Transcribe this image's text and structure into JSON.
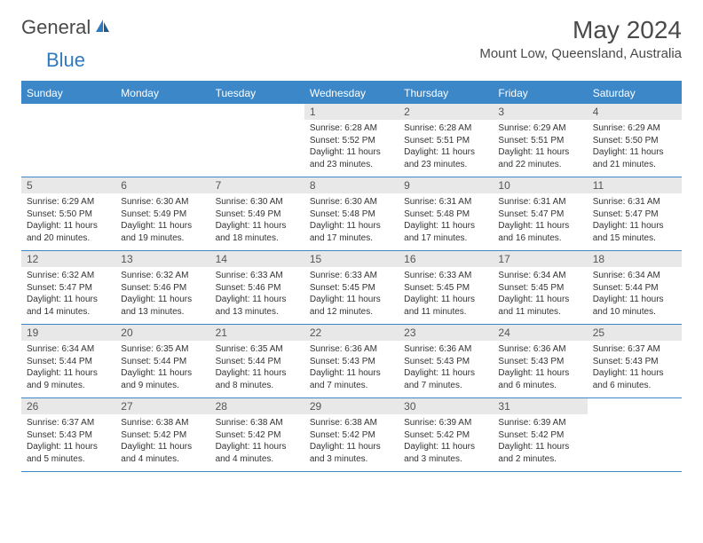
{
  "logo": {
    "text1": "General",
    "text2": "Blue",
    "icon_color": "#2f7ac0"
  },
  "title": "May 2024",
  "location": "Mount Low, Queensland, Australia",
  "days_of_week": [
    "Sunday",
    "Monday",
    "Tuesday",
    "Wednesday",
    "Thursday",
    "Friday",
    "Saturday"
  ],
  "colors": {
    "header_bar": "#3b87c8",
    "day_num_bg": "#e8e8e8",
    "row_border": "#3b87c8",
    "text": "#333333"
  },
  "weeks": [
    [
      {
        "day": "",
        "sunrise": "",
        "sunset": "",
        "daylight": ""
      },
      {
        "day": "",
        "sunrise": "",
        "sunset": "",
        "daylight": ""
      },
      {
        "day": "",
        "sunrise": "",
        "sunset": "",
        "daylight": ""
      },
      {
        "day": "1",
        "sunrise": "Sunrise: 6:28 AM",
        "sunset": "Sunset: 5:52 PM",
        "daylight": "Daylight: 11 hours and 23 minutes."
      },
      {
        "day": "2",
        "sunrise": "Sunrise: 6:28 AM",
        "sunset": "Sunset: 5:51 PM",
        "daylight": "Daylight: 11 hours and 23 minutes."
      },
      {
        "day": "3",
        "sunrise": "Sunrise: 6:29 AM",
        "sunset": "Sunset: 5:51 PM",
        "daylight": "Daylight: 11 hours and 22 minutes."
      },
      {
        "day": "4",
        "sunrise": "Sunrise: 6:29 AM",
        "sunset": "Sunset: 5:50 PM",
        "daylight": "Daylight: 11 hours and 21 minutes."
      }
    ],
    [
      {
        "day": "5",
        "sunrise": "Sunrise: 6:29 AM",
        "sunset": "Sunset: 5:50 PM",
        "daylight": "Daylight: 11 hours and 20 minutes."
      },
      {
        "day": "6",
        "sunrise": "Sunrise: 6:30 AM",
        "sunset": "Sunset: 5:49 PM",
        "daylight": "Daylight: 11 hours and 19 minutes."
      },
      {
        "day": "7",
        "sunrise": "Sunrise: 6:30 AM",
        "sunset": "Sunset: 5:49 PM",
        "daylight": "Daylight: 11 hours and 18 minutes."
      },
      {
        "day": "8",
        "sunrise": "Sunrise: 6:30 AM",
        "sunset": "Sunset: 5:48 PM",
        "daylight": "Daylight: 11 hours and 17 minutes."
      },
      {
        "day": "9",
        "sunrise": "Sunrise: 6:31 AM",
        "sunset": "Sunset: 5:48 PM",
        "daylight": "Daylight: 11 hours and 17 minutes."
      },
      {
        "day": "10",
        "sunrise": "Sunrise: 6:31 AM",
        "sunset": "Sunset: 5:47 PM",
        "daylight": "Daylight: 11 hours and 16 minutes."
      },
      {
        "day": "11",
        "sunrise": "Sunrise: 6:31 AM",
        "sunset": "Sunset: 5:47 PM",
        "daylight": "Daylight: 11 hours and 15 minutes."
      }
    ],
    [
      {
        "day": "12",
        "sunrise": "Sunrise: 6:32 AM",
        "sunset": "Sunset: 5:47 PM",
        "daylight": "Daylight: 11 hours and 14 minutes."
      },
      {
        "day": "13",
        "sunrise": "Sunrise: 6:32 AM",
        "sunset": "Sunset: 5:46 PM",
        "daylight": "Daylight: 11 hours and 13 minutes."
      },
      {
        "day": "14",
        "sunrise": "Sunrise: 6:33 AM",
        "sunset": "Sunset: 5:46 PM",
        "daylight": "Daylight: 11 hours and 13 minutes."
      },
      {
        "day": "15",
        "sunrise": "Sunrise: 6:33 AM",
        "sunset": "Sunset: 5:45 PM",
        "daylight": "Daylight: 11 hours and 12 minutes."
      },
      {
        "day": "16",
        "sunrise": "Sunrise: 6:33 AM",
        "sunset": "Sunset: 5:45 PM",
        "daylight": "Daylight: 11 hours and 11 minutes."
      },
      {
        "day": "17",
        "sunrise": "Sunrise: 6:34 AM",
        "sunset": "Sunset: 5:45 PM",
        "daylight": "Daylight: 11 hours and 11 minutes."
      },
      {
        "day": "18",
        "sunrise": "Sunrise: 6:34 AM",
        "sunset": "Sunset: 5:44 PM",
        "daylight": "Daylight: 11 hours and 10 minutes."
      }
    ],
    [
      {
        "day": "19",
        "sunrise": "Sunrise: 6:34 AM",
        "sunset": "Sunset: 5:44 PM",
        "daylight": "Daylight: 11 hours and 9 minutes."
      },
      {
        "day": "20",
        "sunrise": "Sunrise: 6:35 AM",
        "sunset": "Sunset: 5:44 PM",
        "daylight": "Daylight: 11 hours and 9 minutes."
      },
      {
        "day": "21",
        "sunrise": "Sunrise: 6:35 AM",
        "sunset": "Sunset: 5:44 PM",
        "daylight": "Daylight: 11 hours and 8 minutes."
      },
      {
        "day": "22",
        "sunrise": "Sunrise: 6:36 AM",
        "sunset": "Sunset: 5:43 PM",
        "daylight": "Daylight: 11 hours and 7 minutes."
      },
      {
        "day": "23",
        "sunrise": "Sunrise: 6:36 AM",
        "sunset": "Sunset: 5:43 PM",
        "daylight": "Daylight: 11 hours and 7 minutes."
      },
      {
        "day": "24",
        "sunrise": "Sunrise: 6:36 AM",
        "sunset": "Sunset: 5:43 PM",
        "daylight": "Daylight: 11 hours and 6 minutes."
      },
      {
        "day": "25",
        "sunrise": "Sunrise: 6:37 AM",
        "sunset": "Sunset: 5:43 PM",
        "daylight": "Daylight: 11 hours and 6 minutes."
      }
    ],
    [
      {
        "day": "26",
        "sunrise": "Sunrise: 6:37 AM",
        "sunset": "Sunset: 5:43 PM",
        "daylight": "Daylight: 11 hours and 5 minutes."
      },
      {
        "day": "27",
        "sunrise": "Sunrise: 6:38 AM",
        "sunset": "Sunset: 5:42 PM",
        "daylight": "Daylight: 11 hours and 4 minutes."
      },
      {
        "day": "28",
        "sunrise": "Sunrise: 6:38 AM",
        "sunset": "Sunset: 5:42 PM",
        "daylight": "Daylight: 11 hours and 4 minutes."
      },
      {
        "day": "29",
        "sunrise": "Sunrise: 6:38 AM",
        "sunset": "Sunset: 5:42 PM",
        "daylight": "Daylight: 11 hours and 3 minutes."
      },
      {
        "day": "30",
        "sunrise": "Sunrise: 6:39 AM",
        "sunset": "Sunset: 5:42 PM",
        "daylight": "Daylight: 11 hours and 3 minutes."
      },
      {
        "day": "31",
        "sunrise": "Sunrise: 6:39 AM",
        "sunset": "Sunset: 5:42 PM",
        "daylight": "Daylight: 11 hours and 2 minutes."
      },
      {
        "day": "",
        "sunrise": "",
        "sunset": "",
        "daylight": ""
      }
    ]
  ]
}
